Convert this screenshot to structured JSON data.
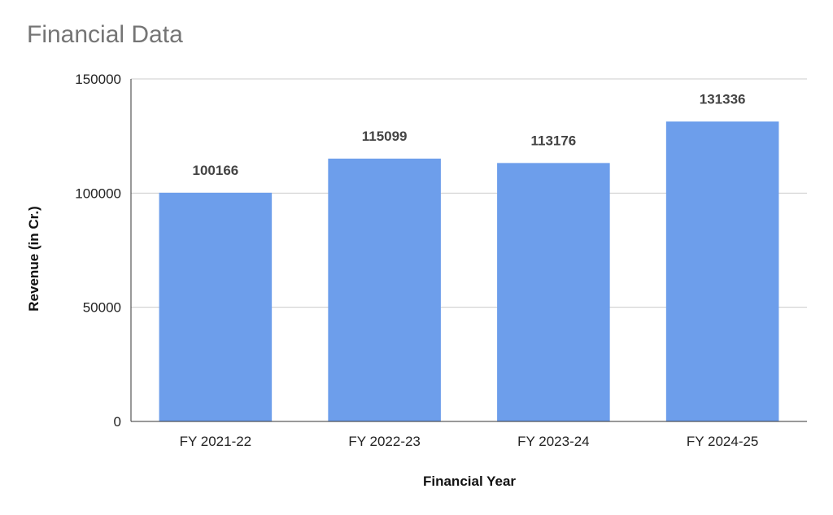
{
  "chart_data": {
    "type": "bar",
    "title": "Financial Data",
    "xlabel": "Financial Year",
    "ylabel": "Revenue (in Cr.)",
    "categories": [
      "FY 2021-22",
      "FY 2022-23",
      "FY 2023-24",
      "FY 2024-25"
    ],
    "values": [
      100166,
      115099,
      113176,
      131336
    ],
    "data_labels": [
      "100166",
      "115099",
      "113176",
      "131336"
    ],
    "ylim": [
      0,
      150000
    ],
    "yticks": [
      0,
      50000,
      100000,
      150000
    ],
    "ytick_labels": [
      "0",
      "50000",
      "100000",
      "150000"
    ],
    "grid": true,
    "legend": "none",
    "bar_color": "#6d9eeb",
    "gridline_color": "#cccccc",
    "axis_color": "#333333"
  }
}
